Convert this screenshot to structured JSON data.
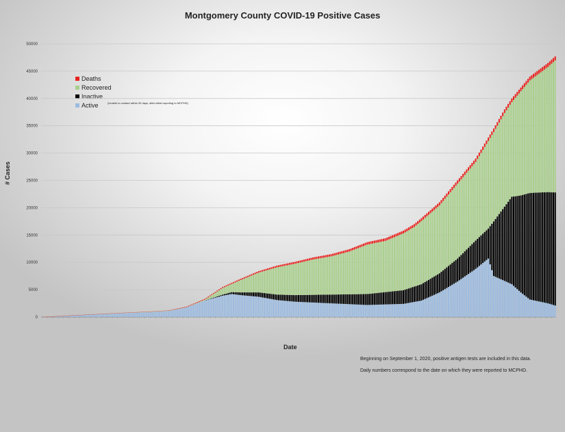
{
  "title": "Montgomery County COVID-19 Positive Cases",
  "chart_data": {
    "type": "bar",
    "stacked": true,
    "title": "Montgomery County COVID-19 Positive Cases",
    "xlabel": "Date",
    "ylabel": "# Cases",
    "ylim": [
      0,
      50000
    ],
    "yticks": [
      "0",
      "5000",
      "10000",
      "15000",
      "20000",
      "25000",
      "30000",
      "35000",
      "40000",
      "45000",
      "50000"
    ],
    "grid": true,
    "legend_position": "top-left",
    "legend": [
      {
        "label": "Deaths",
        "color": "#e8231f"
      },
      {
        "label": "Recovered",
        "color": "#a9cf8c"
      },
      {
        "label": "Inactive",
        "color": "#000000"
      },
      {
        "label": "Active",
        "color": "#9cbbe0"
      }
    ],
    "inactive_note": "(Unable to contact within 30 days, after initial reporting to MCPHD)",
    "anchors_total": [
      [
        0,
        20
      ],
      [
        20,
        350
      ],
      [
        40,
        700
      ],
      [
        60,
        1000
      ],
      [
        70,
        1200
      ],
      [
        80,
        1900
      ],
      [
        90,
        3300
      ],
      [
        100,
        5500
      ],
      [
        110,
        7000
      ],
      [
        120,
        8400
      ],
      [
        130,
        9400
      ],
      [
        140,
        10100
      ],
      [
        150,
        10900
      ],
      [
        160,
        11500
      ],
      [
        170,
        12400
      ],
      [
        180,
        13700
      ],
      [
        190,
        14400
      ],
      [
        200,
        15800
      ],
      [
        206,
        17000
      ],
      [
        210,
        18100
      ],
      [
        220,
        21000
      ],
      [
        230,
        25000
      ],
      [
        240,
        29000
      ],
      [
        250,
        34500
      ],
      [
        256,
        38000
      ],
      [
        260,
        40000
      ],
      [
        270,
        44000
      ],
      [
        280,
        46500
      ],
      [
        284,
        47700
      ]
    ],
    "anchors_active": [
      [
        0,
        20
      ],
      [
        20,
        340
      ],
      [
        40,
        650
      ],
      [
        60,
        900
      ],
      [
        70,
        1100
      ],
      [
        80,
        1800
      ],
      [
        90,
        3000
      ],
      [
        100,
        3900
      ],
      [
        105,
        4200
      ],
      [
        110,
        4000
      ],
      [
        120,
        3700
      ],
      [
        125,
        3400
      ],
      [
        130,
        3100
      ],
      [
        140,
        2800
      ],
      [
        160,
        2500
      ],
      [
        180,
        2200
      ],
      [
        200,
        2400
      ],
      [
        210,
        3000
      ],
      [
        220,
        4500
      ],
      [
        230,
        6500
      ],
      [
        240,
        8800
      ],
      [
        247,
        10700
      ],
      [
        250,
        7500
      ],
      [
        260,
        6000
      ],
      [
        265,
        4500
      ],
      [
        270,
        3200
      ],
      [
        280,
        2500
      ],
      [
        284,
        2100
      ]
    ],
    "anchors_inactive": [
      [
        0,
        0
      ],
      [
        90,
        0
      ],
      [
        100,
        200
      ],
      [
        120,
        800
      ],
      [
        140,
        1200
      ],
      [
        160,
        1600
      ],
      [
        180,
        2000
      ],
      [
        200,
        2500
      ],
      [
        210,
        3000
      ],
      [
        220,
        3500
      ],
      [
        230,
        4200
      ],
      [
        240,
        5200
      ],
      [
        247,
        5500
      ],
      [
        250,
        10000
      ],
      [
        255,
        13000
      ],
      [
        260,
        16000
      ],
      [
        270,
        19500
      ],
      [
        284,
        20700
      ]
    ],
    "anchors_deaths": [
      [
        0,
        0
      ],
      [
        60,
        20
      ],
      [
        100,
        180
      ],
      [
        140,
        350
      ],
      [
        200,
        500
      ],
      [
        240,
        620
      ],
      [
        284,
        740
      ]
    ],
    "x_tick_labels_note": "daily date labels (illegible)"
  },
  "notes": {
    "line1": "Beginning on September 1, 2020, positive antigen tests are included in this data.",
    "line2": "Daily numbers correspond to the date on which they were reported to MCPHD."
  }
}
